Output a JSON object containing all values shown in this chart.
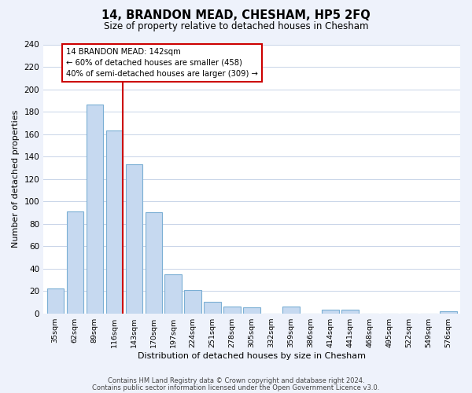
{
  "title": "14, BRANDON MEAD, CHESHAM, HP5 2FQ",
  "subtitle": "Size of property relative to detached houses in Chesham",
  "xlabel": "Distribution of detached houses by size in Chesham",
  "ylabel": "Number of detached properties",
  "bar_labels": [
    "35sqm",
    "62sqm",
    "89sqm",
    "116sqm",
    "143sqm",
    "170sqm",
    "197sqm",
    "224sqm",
    "251sqm",
    "278sqm",
    "305sqm",
    "332sqm",
    "359sqm",
    "386sqm",
    "414sqm",
    "441sqm",
    "468sqm",
    "495sqm",
    "522sqm",
    "549sqm",
    "576sqm"
  ],
  "bar_values": [
    22,
    91,
    186,
    163,
    133,
    90,
    35,
    21,
    10,
    6,
    5,
    0,
    6,
    0,
    3,
    3,
    0,
    0,
    0,
    0,
    2
  ],
  "bar_color": "#c6d9f0",
  "bar_edge_color": "#7bafd4",
  "property_line_label": "14 BRANDON MEAD: 142sqm",
  "annotation_line1": "← 60% of detached houses are smaller (458)",
  "annotation_line2": "40% of semi-detached houses are larger (309) →",
  "annotation_box_color": "#ffffff",
  "annotation_box_edge": "#cc0000",
  "line_color": "#cc0000",
  "red_line_index": 3,
  "ylim": [
    0,
    240
  ],
  "yticks": [
    0,
    20,
    40,
    60,
    80,
    100,
    120,
    140,
    160,
    180,
    200,
    220,
    240
  ],
  "footer1": "Contains HM Land Registry data © Crown copyright and database right 2024.",
  "footer2": "Contains public sector information licensed under the Open Government Licence v3.0.",
  "bg_color": "#eef2fb",
  "plot_bg_color": "#ffffff",
  "grid_color": "#c8d4e8"
}
